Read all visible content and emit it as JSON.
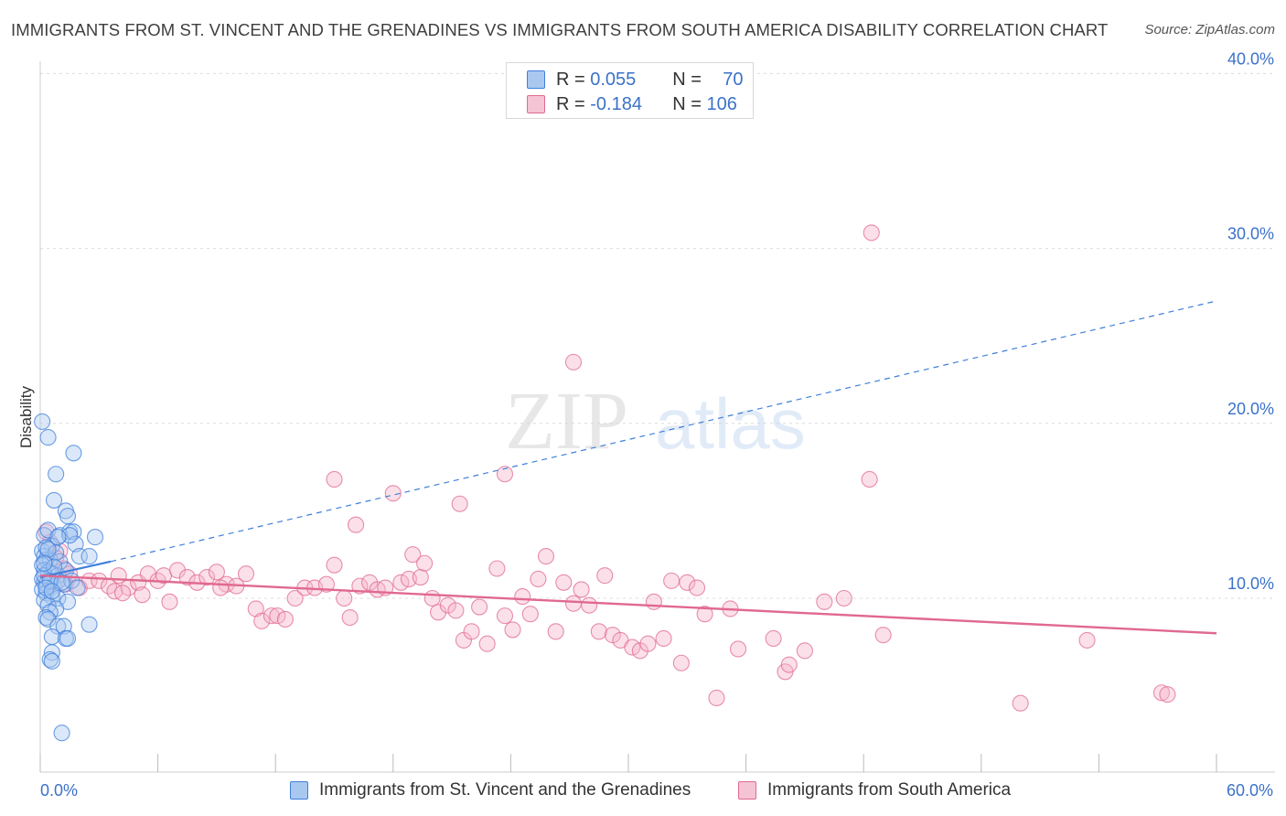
{
  "title": "IMMIGRANTS FROM ST. VINCENT AND THE GRENADINES VS IMMIGRANTS FROM SOUTH AMERICA DISABILITY CORRELATION CHART",
  "source": "Source: ZipAtlas.com",
  "watermark": {
    "zip": "ZIP",
    "atlas": "atlas"
  },
  "legend_top": [
    {
      "r_label": "R =",
      "r_value": "0.055",
      "n_label": "N =",
      "n_value": "70"
    },
    {
      "r_label": "R =",
      "r_value": "-0.184",
      "n_label": "N =",
      "n_value": "106"
    }
  ],
  "chart_data": {
    "type": "scatter",
    "ylabel": "Disability",
    "xlim": [
      0,
      60
    ],
    "ylim": [
      0,
      41
    ],
    "y_ticks": [
      10,
      20,
      30,
      40
    ],
    "y_tick_labels": [
      "10.0%",
      "20.0%",
      "30.0%",
      "40.0%"
    ],
    "x_tick_labels": [
      "0.0%",
      "60.0%"
    ],
    "grid": "horizontal dashed",
    "legend_position": "bottom",
    "series": [
      {
        "name": "Immigrants from St. Vincent and the Grenadines",
        "color": "#3f7fdb",
        "fill": "#a9c8f0",
        "trend": {
          "solid": [
            [
              0,
              11.2
            ],
            [
              3.6,
              12.1
            ]
          ],
          "dashed_to": [
            60,
            27.0
          ]
        },
        "points": [
          [
            0.1,
            20.1
          ],
          [
            0.4,
            19.2
          ],
          [
            0.8,
            17.1
          ],
          [
            1.7,
            18.3
          ],
          [
            0.7,
            15.6
          ],
          [
            1.3,
            15.0
          ],
          [
            1.4,
            14.7
          ],
          [
            0.2,
            13.6
          ],
          [
            0.4,
            13.9
          ],
          [
            1.0,
            13.6
          ],
          [
            1.5,
            13.8
          ],
          [
            1.7,
            13.8
          ],
          [
            2.8,
            13.5
          ],
          [
            0.6,
            13.0
          ],
          [
            1.8,
            13.1
          ],
          [
            0.1,
            12.7
          ],
          [
            0.2,
            12.4
          ],
          [
            0.3,
            12.2
          ],
          [
            0.5,
            12.2
          ],
          [
            1.0,
            12.1
          ],
          [
            2.0,
            12.4
          ],
          [
            2.5,
            12.4
          ],
          [
            0.1,
            11.9
          ],
          [
            0.2,
            11.6
          ],
          [
            0.4,
            11.5
          ],
          [
            0.6,
            11.4
          ],
          [
            0.9,
            11.3
          ],
          [
            1.3,
            11.6
          ],
          [
            0.1,
            11.1
          ],
          [
            0.2,
            10.9
          ],
          [
            0.3,
            10.8
          ],
          [
            0.5,
            10.9
          ],
          [
            0.7,
            10.7
          ],
          [
            0.9,
            11.0
          ],
          [
            1.2,
            10.8
          ],
          [
            1.6,
            11.0
          ],
          [
            1.9,
            10.6
          ],
          [
            0.1,
            10.5
          ],
          [
            0.3,
            10.3
          ],
          [
            0.6,
            10.1
          ],
          [
            0.9,
            10.0
          ],
          [
            0.2,
            9.9
          ],
          [
            0.4,
            9.6
          ],
          [
            1.4,
            9.8
          ],
          [
            0.8,
            9.4
          ],
          [
            0.5,
            9.2
          ],
          [
            0.3,
            8.9
          ],
          [
            0.4,
            8.8
          ],
          [
            2.5,
            8.5
          ],
          [
            0.9,
            8.4
          ],
          [
            1.2,
            8.4
          ],
          [
            0.6,
            7.8
          ],
          [
            1.3,
            7.7
          ],
          [
            1.4,
            7.7
          ],
          [
            0.6,
            6.9
          ],
          [
            0.5,
            6.5
          ],
          [
            0.6,
            6.4
          ],
          [
            1.1,
            2.3
          ],
          [
            0.3,
            12.9
          ],
          [
            0.2,
            11.3
          ],
          [
            0.8,
            12.6
          ],
          [
            0.5,
            11.0
          ],
          [
            1.1,
            10.9
          ],
          [
            0.3,
            10.6
          ],
          [
            0.7,
            11.8
          ],
          [
            0.4,
            12.8
          ],
          [
            1.5,
            13.6
          ],
          [
            0.2,
            12.0
          ],
          [
            0.9,
            13.5
          ],
          [
            0.6,
            10.4
          ]
        ]
      },
      {
        "name": "Immigrants from South America",
        "color": "#e0698f",
        "fill": "#f5b6ca",
        "trend": {
          "solid": [
            [
              0,
              11.3
            ],
            [
              60,
              8.0
            ]
          ]
        },
        "points": [
          [
            0.3,
            13.8
          ],
          [
            0.5,
            13.2
          ],
          [
            1.0,
            12.7
          ],
          [
            0.8,
            12.3
          ],
          [
            1.2,
            11.7
          ],
          [
            1.5,
            11.4
          ],
          [
            1.3,
            10.8
          ],
          [
            2.0,
            10.6
          ],
          [
            2.5,
            11.0
          ],
          [
            3.0,
            11.0
          ],
          [
            3.5,
            10.7
          ],
          [
            4.0,
            11.3
          ],
          [
            4.5,
            10.6
          ],
          [
            5.0,
            10.9
          ],
          [
            5.5,
            11.4
          ],
          [
            6.0,
            11.0
          ],
          [
            6.3,
            11.3
          ],
          [
            7.0,
            11.6
          ],
          [
            7.5,
            11.2
          ],
          [
            8.0,
            10.9
          ],
          [
            8.5,
            11.2
          ],
          [
            9.0,
            11.5
          ],
          [
            9.5,
            10.8
          ],
          [
            3.8,
            10.4
          ],
          [
            4.2,
            10.3
          ],
          [
            5.2,
            10.2
          ],
          [
            6.6,
            9.8
          ],
          [
            9.2,
            10.6
          ],
          [
            10.0,
            10.7
          ],
          [
            10.5,
            11.4
          ],
          [
            11.0,
            9.4
          ],
          [
            11.3,
            8.7
          ],
          [
            11.8,
            9.0
          ],
          [
            12.1,
            9.0
          ],
          [
            12.5,
            8.8
          ],
          [
            13.0,
            10.0
          ],
          [
            13.5,
            10.6
          ],
          [
            14.0,
            10.6
          ],
          [
            14.6,
            10.8
          ],
          [
            15.0,
            11.9
          ],
          [
            15.5,
            10.0
          ],
          [
            15.8,
            8.9
          ],
          [
            16.3,
            10.7
          ],
          [
            16.8,
            10.9
          ],
          [
            17.2,
            10.5
          ],
          [
            17.6,
            10.6
          ],
          [
            18.0,
            16.0
          ],
          [
            18.4,
            10.9
          ],
          [
            18.8,
            11.1
          ],
          [
            19.0,
            12.5
          ],
          [
            19.4,
            11.2
          ],
          [
            19.6,
            12.0
          ],
          [
            20.0,
            10.0
          ],
          [
            20.3,
            9.2
          ],
          [
            20.8,
            9.6
          ],
          [
            21.2,
            9.3
          ],
          [
            21.6,
            7.6
          ],
          [
            22.0,
            8.1
          ],
          [
            22.4,
            9.5
          ],
          [
            22.8,
            7.4
          ],
          [
            23.3,
            11.7
          ],
          [
            23.7,
            9.0
          ],
          [
            24.1,
            8.2
          ],
          [
            24.6,
            10.1
          ],
          [
            25.0,
            9.1
          ],
          [
            25.4,
            11.1
          ],
          [
            25.8,
            12.4
          ],
          [
            26.3,
            8.1
          ],
          [
            26.7,
            10.9
          ],
          [
            27.2,
            9.7
          ],
          [
            27.6,
            10.5
          ],
          [
            28.0,
            9.6
          ],
          [
            28.5,
            8.1
          ],
          [
            28.8,
            11.3
          ],
          [
            29.2,
            7.9
          ],
          [
            29.6,
            7.6
          ],
          [
            30.2,
            7.2
          ],
          [
            30.6,
            7.0
          ],
          [
            31.0,
            7.4
          ],
          [
            31.3,
            9.8
          ],
          [
            31.8,
            7.7
          ],
          [
            32.2,
            11.0
          ],
          [
            32.7,
            6.3
          ],
          [
            33.0,
            10.9
          ],
          [
            33.5,
            10.6
          ],
          [
            33.9,
            9.1
          ],
          [
            34.5,
            4.3
          ],
          [
            35.2,
            9.4
          ],
          [
            35.6,
            7.1
          ],
          [
            37.4,
            7.7
          ],
          [
            38.0,
            5.8
          ],
          [
            38.2,
            6.2
          ],
          [
            39.0,
            7.0
          ],
          [
            41.0,
            10.0
          ],
          [
            43.0,
            7.9
          ],
          [
            50.0,
            4.0
          ],
          [
            57.2,
            4.6
          ],
          [
            57.5,
            4.5
          ],
          [
            53.4,
            7.6
          ],
          [
            40.0,
            9.8
          ],
          [
            16.1,
            14.2
          ],
          [
            15.0,
            16.8
          ],
          [
            21.4,
            15.4
          ],
          [
            23.7,
            17.1
          ],
          [
            27.2,
            23.5
          ],
          [
            42.4,
            30.9
          ],
          [
            42.3,
            16.8
          ]
        ]
      }
    ]
  }
}
